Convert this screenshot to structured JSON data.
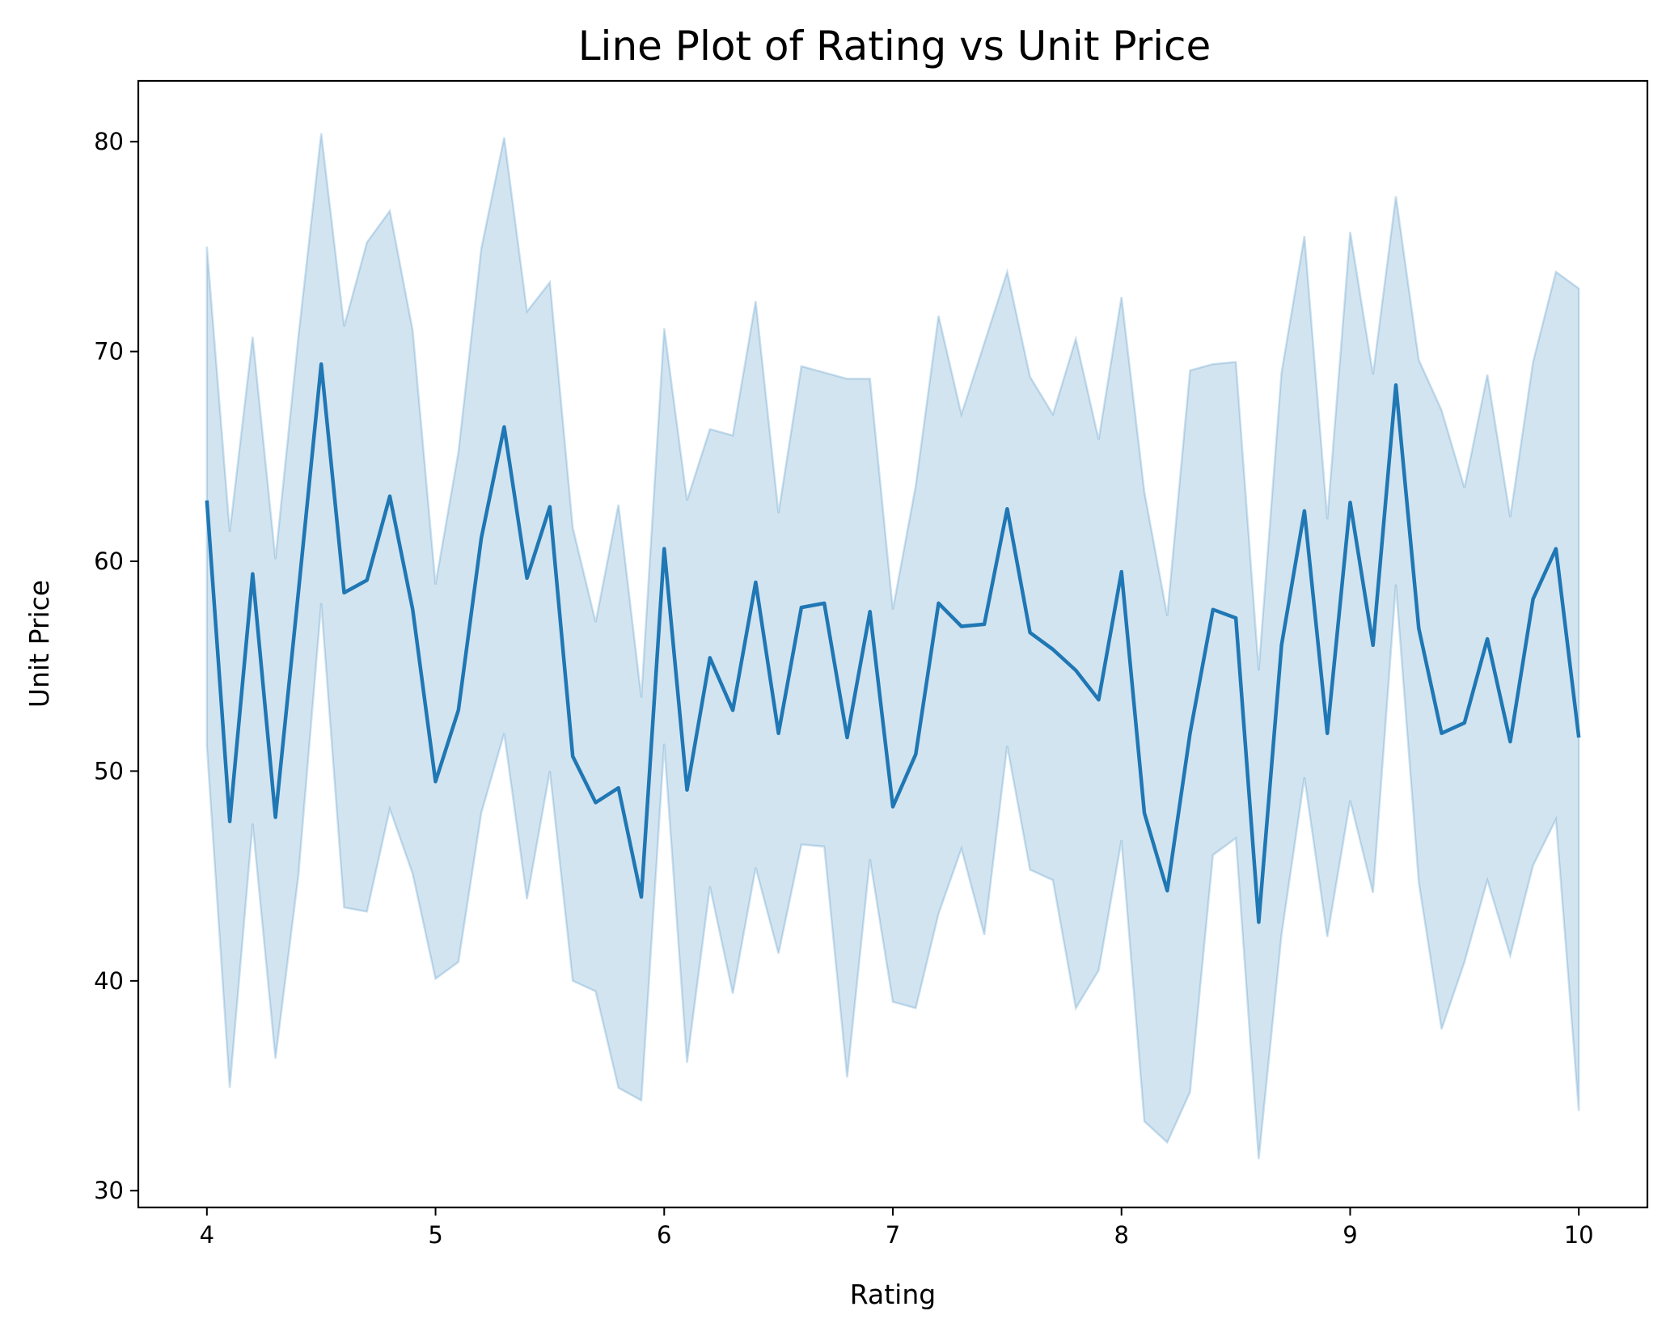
{
  "chart_data": {
    "type": "line",
    "title": "Line Plot of Rating vs Unit Price",
    "xlabel": "Rating",
    "ylabel": "Unit Price",
    "xlim": [
      3.7,
      10.3
    ],
    "ylim": [
      29.2,
      82.9
    ],
    "xticks": [
      4,
      5,
      6,
      7,
      8,
      9,
      10
    ],
    "yticks": [
      30,
      40,
      50,
      60,
      70,
      80
    ],
    "grid": false,
    "legend": "none",
    "colors": {
      "line": "#1f77b4",
      "band": "#1f77b4",
      "band_opacity": 0.2
    },
    "series": [
      {
        "x": [
          4.0,
          4.1,
          4.2,
          4.3,
          4.4,
          4.5,
          4.6,
          4.7,
          4.8,
          4.9,
          5.0,
          5.1,
          5.2,
          5.3,
          5.4,
          5.5,
          5.6,
          5.7,
          5.8,
          5.9,
          6.0,
          6.1,
          6.2,
          6.3,
          6.4,
          6.5,
          6.6,
          6.7,
          6.8,
          6.9,
          7.0,
          7.1,
          7.2,
          7.3,
          7.4,
          7.5,
          7.6,
          7.7,
          7.8,
          7.9,
          8.0,
          8.1,
          8.2,
          8.3,
          8.4,
          8.5,
          8.6,
          8.7,
          8.8,
          8.9,
          9.0,
          9.1,
          9.2,
          9.3,
          9.4,
          9.5,
          9.6,
          9.7,
          9.8,
          9.9,
          10.0
        ],
        "y": [
          62.9,
          47.6,
          59.4,
          47.8,
          58.5,
          69.4,
          58.5,
          59.1,
          63.1,
          57.7,
          49.5,
          52.9,
          61.1,
          66.4,
          59.2,
          62.6,
          50.7,
          48.5,
          49.2,
          44.0,
          60.6,
          49.1,
          55.4,
          52.9,
          59.0,
          51.8,
          57.8,
          58.0,
          51.6,
          57.6,
          48.3,
          50.8,
          58.0,
          56.9,
          57.0,
          62.5,
          56.6,
          55.8,
          54.8,
          53.4,
          59.5,
          48.0,
          44.3,
          51.8,
          57.7,
          57.3,
          42.8,
          56.0,
          62.4,
          51.8,
          62.8,
          56.0,
          68.4,
          56.8,
          51.8,
          52.3,
          56.3,
          51.4,
          58.2,
          60.6,
          51.6
        ],
        "ci_low": [
          51.2,
          34.9,
          47.5,
          36.3,
          45.0,
          58.0,
          43.5,
          43.3,
          48.2,
          45.1,
          40.1,
          40.9,
          48.0,
          51.8,
          43.9,
          50.0,
          40.0,
          39.5,
          34.9,
          34.3,
          51.3,
          36.1,
          44.5,
          39.4,
          45.4,
          41.3,
          46.5,
          46.4,
          35.4,
          45.8,
          39.0,
          38.7,
          43.2,
          46.3,
          42.2,
          51.2,
          45.3,
          44.8,
          38.7,
          40.5,
          46.7,
          33.3,
          32.3,
          34.7,
          46.0,
          46.8,
          31.5,
          42.2,
          49.7,
          42.1,
          48.6,
          44.2,
          58.9,
          44.7,
          37.7,
          40.9,
          44.8,
          41.2,
          45.5,
          47.7,
          33.8
        ],
        "ci_high": [
          75.0,
          61.4,
          70.7,
          60.1,
          70.7,
          80.4,
          71.2,
          75.2,
          76.7,
          71.0,
          58.9,
          65.2,
          74.9,
          80.2,
          71.9,
          73.3,
          61.6,
          57.1,
          62.7,
          53.5,
          71.1,
          62.9,
          66.3,
          66.0,
          72.4,
          62.3,
          69.3,
          69.0,
          68.7,
          68.7,
          57.7,
          63.6,
          71.7,
          67.0,
          70.4,
          73.8,
          68.8,
          67.0,
          70.6,
          65.8,
          72.6,
          63.3,
          57.4,
          69.1,
          69.4,
          69.5,
          54.8,
          69.0,
          75.5,
          62.0,
          75.7,
          68.9,
          77.4,
          69.6,
          67.2,
          63.5,
          68.9,
          62.1,
          69.5,
          73.8,
          73.0
        ]
      }
    ]
  }
}
